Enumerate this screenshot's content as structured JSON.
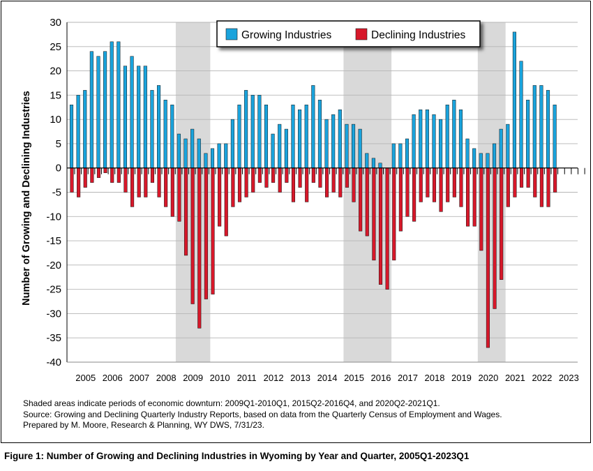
{
  "chart_data": {
    "type": "bar",
    "ylabel": "Number of Growing and Declining Industries",
    "xlabel": "",
    "ylim": [
      -40,
      30
    ],
    "yticks": [
      30,
      25,
      20,
      15,
      10,
      5,
      0,
      -5,
      -10,
      -15,
      -20,
      -25,
      -30,
      -35,
      -40
    ],
    "x_tick_labels": [
      "2005",
      "2006",
      "2007",
      "2008",
      "2009",
      "2010",
      "2011",
      "2012",
      "2013",
      "2014",
      "2015",
      "2016",
      "2017",
      "2018",
      "2019",
      "2020",
      "2021",
      "2022",
      "2023"
    ],
    "grid": "horizontal",
    "legend_position": "top-right",
    "quarters": [
      "2005Q1",
      "2005Q2",
      "2005Q3",
      "2005Q4",
      "2006Q1",
      "2006Q2",
      "2006Q3",
      "2006Q4",
      "2007Q1",
      "2007Q2",
      "2007Q3",
      "2007Q4",
      "2008Q1",
      "2008Q2",
      "2008Q3",
      "2008Q4",
      "2009Q1",
      "2009Q2",
      "2009Q3",
      "2009Q4",
      "2010Q1",
      "2010Q2",
      "2010Q3",
      "2010Q4",
      "2011Q1",
      "2011Q2",
      "2011Q3",
      "2011Q4",
      "2012Q1",
      "2012Q2",
      "2012Q3",
      "2012Q4",
      "2013Q1",
      "2013Q2",
      "2013Q3",
      "2013Q4",
      "2014Q1",
      "2014Q2",
      "2014Q3",
      "2014Q4",
      "2015Q1",
      "2015Q2",
      "2015Q3",
      "2015Q4",
      "2016Q1",
      "2016Q2",
      "2016Q3",
      "2016Q4",
      "2017Q1",
      "2017Q2",
      "2017Q3",
      "2017Q4",
      "2018Q1",
      "2018Q2",
      "2018Q3",
      "2018Q4",
      "2019Q1",
      "2019Q2",
      "2019Q3",
      "2019Q4",
      "2020Q1",
      "2020Q2",
      "2020Q3",
      "2020Q4",
      "2021Q1",
      "2021Q2",
      "2021Q3",
      "2021Q4",
      "2022Q1",
      "2022Q2",
      "2022Q3",
      "2022Q4",
      "2023Q1"
    ],
    "series": [
      {
        "name": "Growing Industries",
        "color": "#1aa3dc",
        "values": [
          13,
          15,
          16,
          24,
          23,
          24,
          26,
          26,
          21,
          23,
          21,
          21,
          16,
          17,
          14,
          13,
          7,
          6,
          8,
          6,
          3,
          4,
          5,
          5,
          10,
          13,
          16,
          15,
          15,
          13,
          7,
          9,
          8,
          13,
          12,
          13,
          17,
          14,
          10,
          11,
          12,
          9,
          9,
          8,
          3,
          2,
          1,
          0,
          5,
          5,
          6,
          11,
          12,
          12,
          11,
          10,
          13,
          14,
          12,
          6,
          4,
          3,
          3,
          5,
          8,
          9,
          28,
          22,
          14,
          17,
          17,
          16,
          13
        ]
      },
      {
        "name": "Declining Industries",
        "color": "#d7182a",
        "values": [
          -5,
          -6,
          -4,
          -3,
          -2,
          -1,
          -3,
          -3,
          -5,
          -8,
          -6,
          -6,
          -3,
          -6,
          -8,
          -10,
          -11,
          -18,
          -28,
          -33,
          -27,
          -26,
          -12,
          -14,
          -8,
          -7,
          -6,
          -5,
          -3,
          -4,
          -3,
          -5,
          -3,
          -7,
          -4,
          -7,
          -3,
          -4,
          -6,
          -5,
          -6,
          -4,
          -7,
          -13,
          -14,
          -19,
          -24,
          -25,
          -19,
          -13,
          -10,
          -11,
          -7,
          -6,
          -7,
          -9,
          -7,
          -6,
          -8,
          -12,
          -12,
          -17,
          -37,
          -29,
          -23,
          -8,
          -6,
          -4,
          -4,
          -6,
          -8,
          -8,
          -5
        ]
      }
    ],
    "shaded_periods": [
      [
        "2009Q1",
        "2010Q1"
      ],
      [
        "2015Q2",
        "2016Q4"
      ],
      [
        "2020Q2",
        "2021Q1"
      ]
    ],
    "shade_color": "#d9d9d9"
  },
  "notes": [
    "Shaded areas indicate periods of economic downturn: 2009Q1-2010Q1, 2015Q2-2016Q4, and 2020Q2-2021Q1.",
    "Source: Growing and Declining Quarterly Industry Reports, based on data from the Quarterly Census of Employment and Wages.",
    "Prepared by M. Moore, Research & Planning, WY DWS, 7/31/23."
  ],
  "caption": "Figure 1: Number of Growing and Declining Industries in Wyoming by Year and Quarter, 2005Q1-2023Q1"
}
